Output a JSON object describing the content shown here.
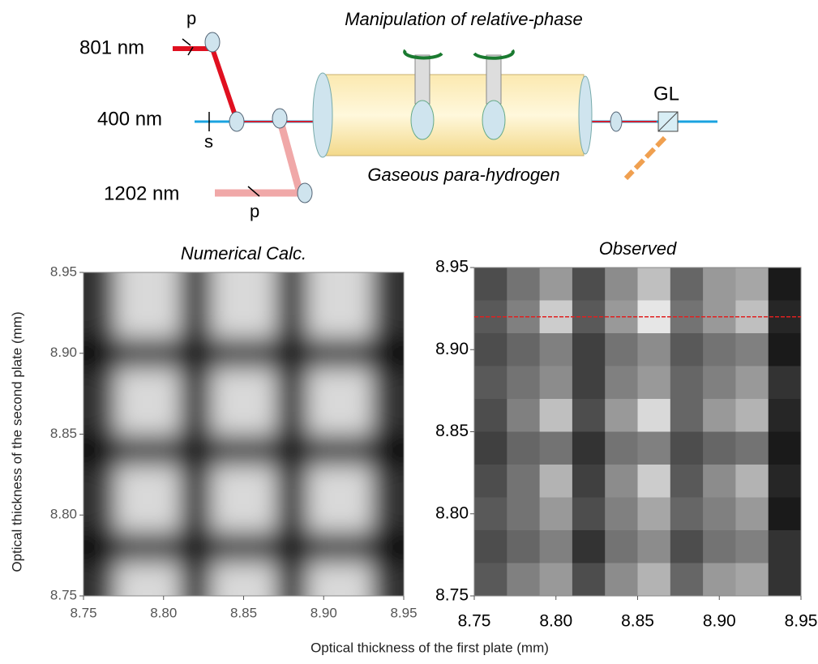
{
  "diagram": {
    "title": "Manipulation of relative-phase",
    "beam_801": "801 nm",
    "pol_801": "p",
    "beam_400": "400 nm",
    "pol_400": "s",
    "beam_1202": "1202 nm",
    "pol_1202": "p",
    "cell_label": "Gaseous para-hydrogen",
    "polarizer": "GL"
  },
  "figure": {
    "xlabel": "Optical thickness of the first plate  (mm)",
    "ylabel": "Optical thickness of the second plate  (mm)"
  },
  "chart_data": [
    {
      "type": "heatmap",
      "title": "Numerical Calc.",
      "smooth": true,
      "xlim": [
        8.75,
        8.95
      ],
      "ylim": [
        8.75,
        8.95
      ],
      "xticks": [
        8.75,
        {
          "value": 8.8,
          "label": "8.80"
        },
        8.85,
        {
          "value": 8.9,
          "label": "8.90"
        },
        8.95
      ],
      "yticks": [
        8.75,
        {
          "value": 8.8,
          "label": "8.80"
        },
        8.85,
        {
          "value": 8.9,
          "label": "8.90"
        },
        8.95
      ],
      "values": [
        [
          0.2,
          0.85,
          0.85,
          0.2,
          0.85,
          0.85,
          0.2,
          0.85,
          0.85,
          0.2
        ],
        [
          0.2,
          0.85,
          0.85,
          0.2,
          0.85,
          0.85,
          0.2,
          0.85,
          0.85,
          0.2
        ],
        [
          0.05,
          0.3,
          0.3,
          0.05,
          0.3,
          0.3,
          0.05,
          0.3,
          0.3,
          0.05
        ],
        [
          0.2,
          0.85,
          0.85,
          0.2,
          0.85,
          0.85,
          0.2,
          0.85,
          0.85,
          0.2
        ],
        [
          0.2,
          0.85,
          0.85,
          0.2,
          0.85,
          0.85,
          0.2,
          0.85,
          0.85,
          0.2
        ],
        [
          0.05,
          0.3,
          0.3,
          0.05,
          0.3,
          0.3,
          0.05,
          0.3,
          0.3,
          0.05
        ],
        [
          0.2,
          0.85,
          0.85,
          0.2,
          0.85,
          0.85,
          0.2,
          0.85,
          0.85,
          0.2
        ],
        [
          0.2,
          0.85,
          0.85,
          0.2,
          0.85,
          0.85,
          0.2,
          0.85,
          0.85,
          0.2
        ],
        [
          0.05,
          0.3,
          0.3,
          0.05,
          0.3,
          0.3,
          0.05,
          0.3,
          0.3,
          0.05
        ],
        [
          0.2,
          0.85,
          0.85,
          0.2,
          0.85,
          0.85,
          0.2,
          0.85,
          0.85,
          0.2
        ]
      ]
    },
    {
      "type": "heatmap",
      "title": "Observed",
      "smooth": false,
      "xlim": [
        8.75,
        8.95
      ],
      "ylim": [
        8.75,
        8.95
      ],
      "xticks": [
        8.75,
        {
          "value": 8.8,
          "label": "8.80"
        },
        8.85,
        {
          "value": 8.9,
          "label": "8.90"
        },
        8.95
      ],
      "yticks": [
        8.75,
        {
          "value": 8.8,
          "label": "8.80"
        },
        8.85,
        {
          "value": 8.9,
          "label": "8.90"
        },
        8.95
      ],
      "reference_y": 8.92,
      "reference_color": "#e02020",
      "values": [
        [
          0.3,
          0.45,
          0.6,
          0.3,
          0.55,
          0.75,
          0.4,
          0.6,
          0.65,
          0.1
        ],
        [
          0.35,
          0.5,
          0.8,
          0.35,
          0.6,
          0.9,
          0.45,
          0.6,
          0.75,
          0.15
        ],
        [
          0.3,
          0.4,
          0.5,
          0.25,
          0.45,
          0.55,
          0.35,
          0.45,
          0.5,
          0.1
        ],
        [
          0.35,
          0.45,
          0.55,
          0.25,
          0.5,
          0.6,
          0.4,
          0.5,
          0.6,
          0.2
        ],
        [
          0.3,
          0.5,
          0.75,
          0.3,
          0.6,
          0.85,
          0.4,
          0.6,
          0.7,
          0.15
        ],
        [
          0.25,
          0.4,
          0.45,
          0.2,
          0.45,
          0.5,
          0.3,
          0.4,
          0.45,
          0.1
        ],
        [
          0.3,
          0.45,
          0.7,
          0.25,
          0.55,
          0.8,
          0.35,
          0.55,
          0.7,
          0.15
        ],
        [
          0.35,
          0.45,
          0.6,
          0.3,
          0.5,
          0.65,
          0.4,
          0.5,
          0.6,
          0.1
        ],
        [
          0.3,
          0.4,
          0.5,
          0.2,
          0.45,
          0.55,
          0.3,
          0.45,
          0.5,
          0.2
        ],
        [
          0.35,
          0.5,
          0.6,
          0.3,
          0.55,
          0.7,
          0.4,
          0.6,
          0.65,
          0.2
        ]
      ]
    }
  ]
}
